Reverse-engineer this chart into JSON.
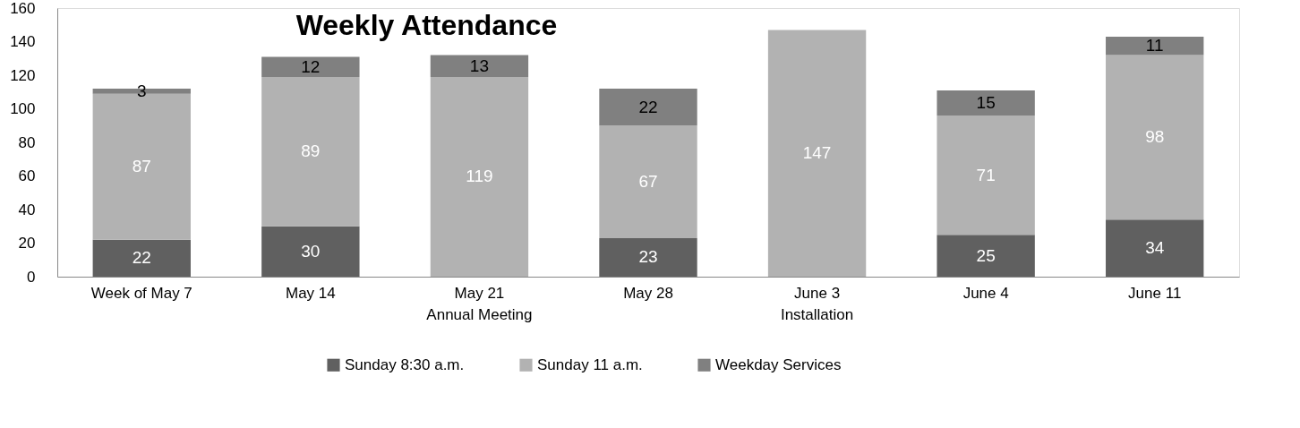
{
  "chart_data": {
    "type": "bar",
    "title": "Weekly Attendance",
    "stacked": true,
    "data_labels": true,
    "legend": "bottom",
    "grid": false,
    "categories": [
      "Week of May 7",
      "May 14",
      "May 21\nAnnual Meeting",
      "May 28",
      "June 3\nInstallation",
      "June 4",
      "June 11"
    ],
    "ylim": [
      0,
      160
    ],
    "yticks": [
      0,
      20,
      40,
      60,
      80,
      100,
      120,
      140,
      160
    ],
    "series": [
      {
        "name": "Sunday 8:30 a.m.",
        "color": "#606060",
        "values": [
          22,
          30,
          null,
          23,
          null,
          25,
          34
        ]
      },
      {
        "name": "Sunday 11 a.m.",
        "color": "#b2b2b2",
        "values": [
          87,
          89,
          119,
          67,
          147,
          71,
          98
        ]
      },
      {
        "name": "Weekday Services",
        "color": "#808080",
        "values": [
          3,
          12,
          13,
          22,
          null,
          15,
          11
        ]
      }
    ]
  }
}
